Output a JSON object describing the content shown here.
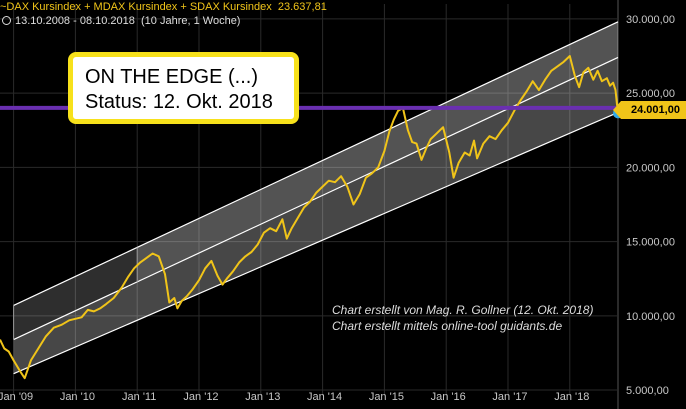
{
  "header": {
    "title": "~DAX Kursindex + MDAX Kursindex + SDAX Kursindex",
    "last_value": "23.637,81",
    "period": "13.10.2008 - 08.10.2018",
    "interval": "(10 Jahre, 1 Woche)"
  },
  "callout": {
    "line1": "ON THE EDGE (...)",
    "line2": "Status: 12. Okt. 2018"
  },
  "price_tag": "24.001,00",
  "credits": {
    "line1": "Chart erstellt von Mag. R. Gollner (12. Okt. 2018)",
    "line2": "Chart erstellt mittels online-tool guidants.de"
  },
  "colors": {
    "background": "#000000",
    "price_line": "#f0c419",
    "horizontal_line": "#6a2fb0",
    "channel": "#ffffff",
    "grid": "#2a2a2a",
    "axis_text": "#c8c8c8",
    "marker": "#2fa8e8"
  },
  "chart_data": {
    "type": "line",
    "x_tick_labels": [
      "Jan '09",
      "Jan '10",
      "Jan '11",
      "Jan '12",
      "Jan '13",
      "Jan '14",
      "Jan '15",
      "Jan '16",
      "Jan '17",
      "Jan '18"
    ],
    "y_tick_labels": [
      "5.000,00",
      "10.000,00",
      "15.000,00",
      "20.000,00",
      "25.000,00",
      "30.000,00"
    ],
    "y_ticks": [
      5000,
      10000,
      15000,
      20000,
      25000,
      30000
    ],
    "ylim": [
      4600,
      31000
    ],
    "x_range": [
      2008.78,
      2018.78
    ],
    "grid": true,
    "horizontal_line": 24001,
    "series": [
      {
        "x": [
          2008.78,
          2008.85,
          2008.92,
          2009.0,
          2009.1,
          2009.18,
          2009.28,
          2009.4,
          2009.52,
          2009.65,
          2009.78,
          2009.9,
          2010.0,
          2010.1,
          2010.2,
          2010.3,
          2010.4,
          2010.5,
          2010.62,
          2010.75,
          2010.85,
          2010.95,
          2011.05,
          2011.15,
          2011.25,
          2011.35,
          2011.45,
          2011.52,
          2011.6,
          2011.65,
          2011.72,
          2011.8,
          2011.9,
          2012.0,
          2012.1,
          2012.2,
          2012.3,
          2012.38,
          2012.45,
          2012.55,
          2012.65,
          2012.75,
          2012.85,
          2012.95,
          2013.05,
          2013.15,
          2013.25,
          2013.35,
          2013.42,
          2013.5,
          2013.6,
          2013.7,
          2013.8,
          2013.9,
          2014.0,
          2014.1,
          2014.2,
          2014.3,
          2014.4,
          2014.5,
          2014.6,
          2014.7,
          2014.8,
          2014.9,
          2015.0,
          2015.08,
          2015.15,
          2015.22,
          2015.3,
          2015.38,
          2015.45,
          2015.52,
          2015.6,
          2015.68,
          2015.75,
          2015.85,
          2015.95,
          2016.05,
          2016.12,
          2016.2,
          2016.3,
          2016.38,
          2016.45,
          2016.5,
          2016.6,
          2016.7,
          2016.8,
          2016.9,
          2017.0,
          2017.1,
          2017.2,
          2017.3,
          2017.4,
          2017.5,
          2017.6,
          2017.7,
          2017.8,
          2017.9,
          2018.0,
          2018.08,
          2018.15,
          2018.22,
          2018.3,
          2018.38,
          2018.45,
          2018.52,
          2018.6,
          2018.65,
          2018.7,
          2018.74,
          2018.78
        ],
        "y": [
          8400,
          7800,
          7600,
          7000,
          6300,
          5800,
          7000,
          7800,
          8600,
          9200,
          9400,
          9700,
          9800,
          9900,
          10400,
          10300,
          10500,
          10800,
          11200,
          11900,
          12600,
          13200,
          13600,
          13900,
          14200,
          14000,
          12800,
          10900,
          11200,
          10500,
          11000,
          11300,
          11800,
          12400,
          13200,
          13700,
          12700,
          12100,
          12500,
          13000,
          13600,
          14000,
          14300,
          14800,
          15600,
          15900,
          15700,
          16500,
          15200,
          15900,
          16600,
          17300,
          17700,
          18300,
          18700,
          19100,
          19000,
          19400,
          18700,
          17500,
          18200,
          19300,
          19600,
          20000,
          21100,
          22400,
          23200,
          23800,
          24000,
          22500,
          21700,
          21600,
          20500,
          21300,
          21900,
          22300,
          22700,
          21000,
          19300,
          20300,
          21000,
          20800,
          21800,
          20600,
          21600,
          22100,
          21900,
          22500,
          23000,
          23800,
          24500,
          25100,
          25800,
          25200,
          25900,
          26500,
          26800,
          27100,
          27500,
          26200,
          25400,
          26400,
          26700,
          25900,
          26500,
          25800,
          26000,
          25500,
          25700,
          25200,
          23600
        ]
      }
    ],
    "channel": {
      "upper": {
        "x": [
          2009.0,
          2018.78
        ],
        "y": [
          10700,
          29800
        ]
      },
      "middle": {
        "x": [
          2009.0,
          2018.78
        ],
        "y": [
          8400,
          27400
        ]
      },
      "lower": {
        "x": [
          2009.0,
          2018.78
        ],
        "y": [
          6100,
          23700
        ]
      },
      "shaded_start_1": 2009.0,
      "shaded_start_2": 2011.0
    },
    "last_point": {
      "x": 2018.78,
      "y": 23637.81
    }
  }
}
